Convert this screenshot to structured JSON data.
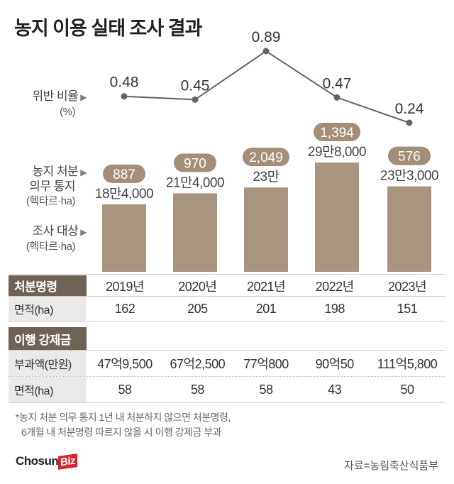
{
  "title": "농지 이용 실태 조사 결과",
  "labels": {
    "violation": "위반 비율",
    "violation_unit": "(%)",
    "notice_1": "농지 처분",
    "notice_2": "의무 통지",
    "notice_unit": "(헥타르·ha)",
    "survey": "조사 대상",
    "survey_unit": "(헥타르·ha)"
  },
  "chart_data": {
    "type": "bar+line",
    "categories": [
      "2019년",
      "2020년",
      "2021년",
      "2022년",
      "2023년"
    ],
    "series": [
      {
        "name": "조사 대상",
        "unit": "ha",
        "values": [
          184000,
          214000,
          230000,
          298000,
          233000
        ],
        "labels": [
          "18만4,000",
          "21만4,000",
          "23만",
          "29만8,000",
          "23만3,000"
        ],
        "color": "#a89580"
      },
      {
        "name": "농지 처분 의무 통지",
        "unit": "ha",
        "values": [
          887,
          970,
          2049,
          1394,
          576
        ],
        "labels": [
          "887",
          "970",
          "2,049",
          "1,394",
          "576"
        ],
        "color": "#a38e77"
      },
      {
        "name": "위반 비율",
        "unit": "%",
        "values": [
          0.48,
          0.45,
          0.89,
          0.47,
          0.24
        ],
        "labels": [
          "0.48",
          "0.45",
          "0.89",
          "0.47",
          "0.24"
        ],
        "color": "#6b6360"
      }
    ]
  },
  "table": {
    "section1": "처분명령",
    "years": [
      "2019년",
      "2020년",
      "2021년",
      "2022년",
      "2023년"
    ],
    "area_label": "면적(ha)",
    "order_area": [
      "162",
      "205",
      "201",
      "198",
      "151"
    ],
    "section2": "이행 강제금",
    "fine_label": "부과액(만원)",
    "fine": [
      "47억9,500",
      "67억2,500",
      "77억800",
      "90억50",
      "111억5,800"
    ],
    "fine_area_label": "면적(ha)",
    "fine_area": [
      "58",
      "58",
      "58",
      "43",
      "50"
    ]
  },
  "note_1": "*농지 처분 의무 통지 1년 내 처분하지 않으면 처분명령,",
  "note_2": "6개월 내 처분명령 따르지 않을 시 이행 강제금 부과",
  "logo": {
    "a": "Chosun",
    "b": "Biz"
  },
  "source": "자료=농림축산식품부"
}
